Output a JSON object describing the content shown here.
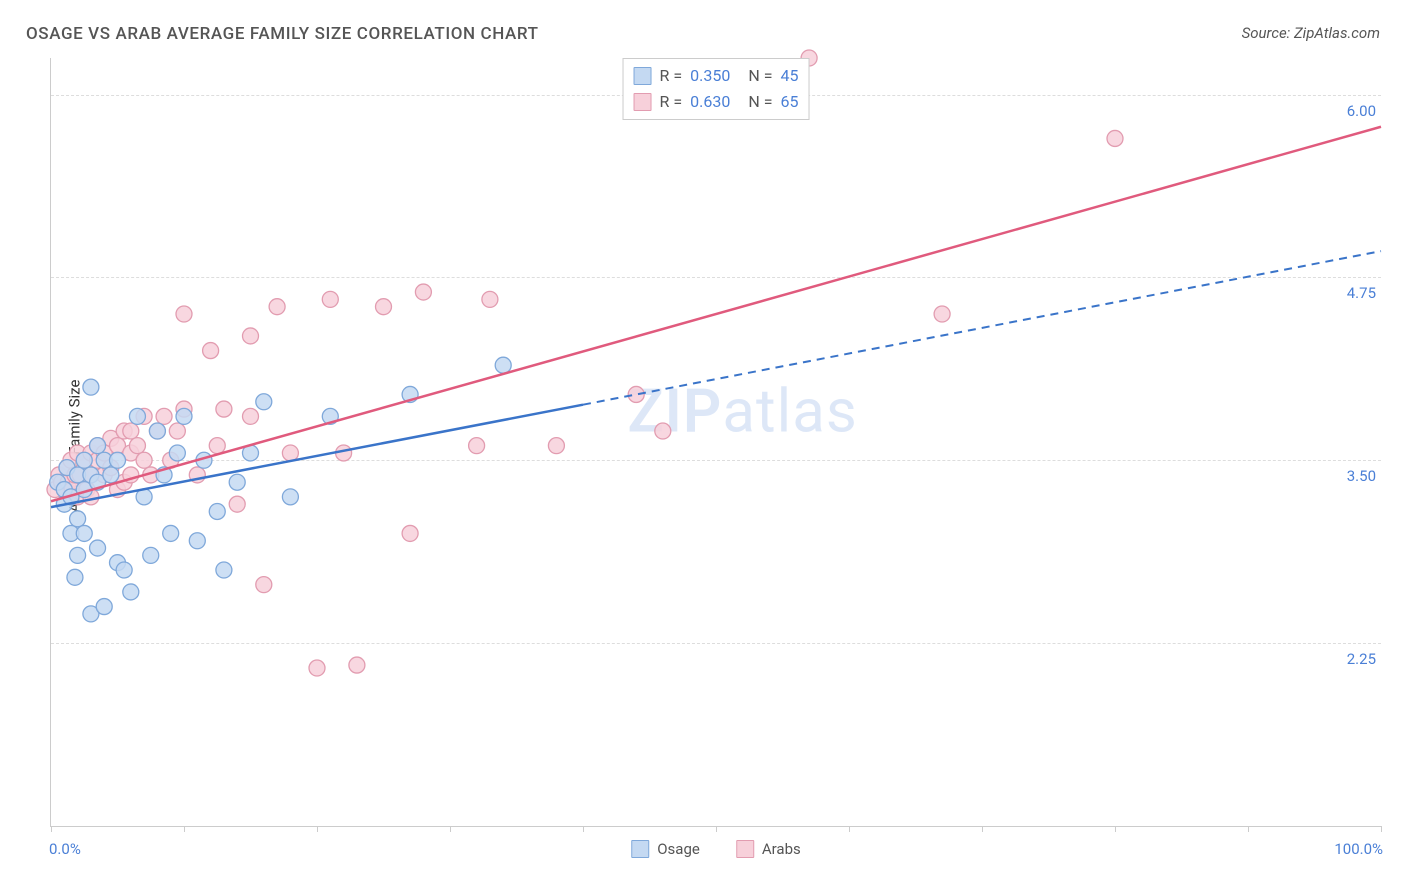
{
  "title": "OSAGE VS ARAB AVERAGE FAMILY SIZE CORRELATION CHART",
  "source_label": "Source: ZipAtlas.com",
  "ylabel": "Average Family Size",
  "watermark_prefix": "ZIP",
  "watermark_suffix": "atlas",
  "chart": {
    "type": "scatter",
    "xlim": [
      0,
      100
    ],
    "ylim": [
      1.0,
      6.25
    ],
    "x_min_label": "0.0%",
    "x_max_label": "100.0%",
    "y_ticks": [
      2.25,
      3.5,
      4.75,
      6.0
    ],
    "y_tick_labels": [
      "2.25",
      "3.50",
      "4.75",
      "6.00"
    ],
    "x_ticks": [
      0,
      10,
      20,
      30,
      40,
      50,
      60,
      70,
      80,
      90,
      100
    ],
    "grid_color": "#dddddd",
    "axis_color": "#cccccc",
    "background_color": "#ffffff",
    "series": {
      "osage": {
        "label": "Osage",
        "fill": "#c4d9f2",
        "stroke": "#7fa8da",
        "line_color": "#3a74c9",
        "r_value": "0.350",
        "n_value": "45",
        "marker_radius": 8,
        "points": [
          [
            0.5,
            3.35
          ],
          [
            1,
            3.3
          ],
          [
            1,
            3.2
          ],
          [
            1.2,
            3.45
          ],
          [
            1.5,
            3.25
          ],
          [
            1.5,
            3.0
          ],
          [
            1.8,
            2.7
          ],
          [
            2,
            3.4
          ],
          [
            2,
            3.1
          ],
          [
            2,
            2.85
          ],
          [
            2.5,
            3.5
          ],
          [
            2.5,
            3.3
          ],
          [
            2.5,
            3.0
          ],
          [
            3,
            2.45
          ],
          [
            3,
            3.4
          ],
          [
            3,
            4.0
          ],
          [
            3.5,
            3.35
          ],
          [
            3.5,
            3.6
          ],
          [
            3.5,
            2.9
          ],
          [
            4,
            3.5
          ],
          [
            4,
            2.5
          ],
          [
            4.5,
            3.4
          ],
          [
            5,
            2.8
          ],
          [
            5,
            3.5
          ],
          [
            5.5,
            2.75
          ],
          [
            6,
            2.6
          ],
          [
            6.5,
            3.8
          ],
          [
            7,
            3.25
          ],
          [
            7.5,
            2.85
          ],
          [
            8,
            3.7
          ],
          [
            8.5,
            3.4
          ],
          [
            9,
            3.0
          ],
          [
            9.5,
            3.55
          ],
          [
            10,
            3.8
          ],
          [
            11,
            2.95
          ],
          [
            11.5,
            3.5
          ],
          [
            12.5,
            3.15
          ],
          [
            13,
            2.75
          ],
          [
            14,
            3.35
          ],
          [
            15,
            3.55
          ],
          [
            16,
            3.9
          ],
          [
            18,
            3.25
          ],
          [
            21,
            3.8
          ],
          [
            27,
            3.95
          ],
          [
            34,
            4.15
          ]
        ],
        "trend": {
          "solid_end_x": 40,
          "y_at_0": 3.18,
          "y_at_40": 3.88,
          "y_at_100": 4.93
        }
      },
      "arabs": {
        "label": "Arabs",
        "fill": "#f7d0da",
        "stroke": "#e29cb0",
        "line_color": "#e05a7d",
        "r_value": "0.630",
        "n_value": "65",
        "marker_radius": 8,
        "points": [
          [
            0.3,
            3.3
          ],
          [
            0.6,
            3.4
          ],
          [
            0.8,
            3.35
          ],
          [
            1,
            3.3
          ],
          [
            1.2,
            3.45
          ],
          [
            1.3,
            3.35
          ],
          [
            1.5,
            3.5
          ],
          [
            1.6,
            3.3
          ],
          [
            1.8,
            3.4
          ],
          [
            2,
            3.55
          ],
          [
            2,
            3.25
          ],
          [
            2.2,
            3.4
          ],
          [
            2.5,
            3.5
          ],
          [
            2.7,
            3.3
          ],
          [
            3,
            3.55
          ],
          [
            3,
            3.4
          ],
          [
            3,
            3.25
          ],
          [
            3.5,
            3.5
          ],
          [
            3.5,
            3.6
          ],
          [
            4,
            3.4
          ],
          [
            4,
            3.55
          ],
          [
            4.5,
            3.65
          ],
          [
            4.5,
            3.45
          ],
          [
            5,
            3.6
          ],
          [
            5,
            3.3
          ],
          [
            5.5,
            3.7
          ],
          [
            5.5,
            3.35
          ],
          [
            6,
            3.7
          ],
          [
            6,
            3.55
          ],
          [
            6,
            3.4
          ],
          [
            6.5,
            3.6
          ],
          [
            7,
            3.8
          ],
          [
            7,
            3.5
          ],
          [
            7.5,
            3.4
          ],
          [
            8,
            3.7
          ],
          [
            8.5,
            3.8
          ],
          [
            9,
            3.5
          ],
          [
            9.5,
            3.7
          ],
          [
            10,
            3.85
          ],
          [
            10,
            4.5
          ],
          [
            11,
            3.4
          ],
          [
            12,
            4.25
          ],
          [
            12.5,
            3.6
          ],
          [
            13,
            3.85
          ],
          [
            14,
            3.2
          ],
          [
            15,
            4.35
          ],
          [
            15,
            3.8
          ],
          [
            16,
            2.65
          ],
          [
            17,
            4.55
          ],
          [
            18,
            3.55
          ],
          [
            20,
            2.08
          ],
          [
            21,
            4.6
          ],
          [
            22,
            3.55
          ],
          [
            23,
            2.1
          ],
          [
            25,
            4.55
          ],
          [
            27,
            3.0
          ],
          [
            28,
            4.65
          ],
          [
            32,
            3.6
          ],
          [
            33,
            4.6
          ],
          [
            38,
            3.6
          ],
          [
            44,
            3.95
          ],
          [
            46,
            3.7
          ],
          [
            57,
            6.25
          ],
          [
            67,
            4.5
          ],
          [
            80,
            5.7
          ]
        ],
        "trend": {
          "y_at_0": 3.22,
          "y_at_100": 5.78
        }
      }
    }
  },
  "legend_bottom": [
    {
      "label": "Osage",
      "fill": "#c4d9f2",
      "stroke": "#7fa8da"
    },
    {
      "label": "Arabs",
      "fill": "#f7d0da",
      "stroke": "#e29cb0"
    }
  ]
}
